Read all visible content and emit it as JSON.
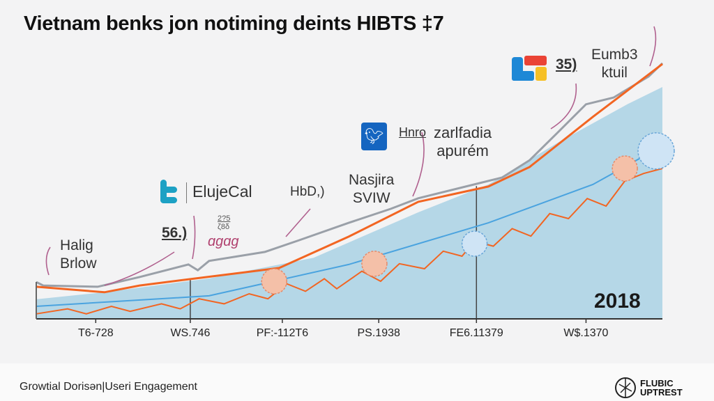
{
  "title": "Vietnam benks jon notiming deints HIBTS ‡7",
  "footer": {
    "text": "Growtial Dorisǝn|Useri Engagement",
    "brand": [
      "FLUBIC",
      "UPTREST"
    ]
  },
  "annotations": {
    "halig": [
      "Halig",
      "Brlow"
    ],
    "num56": "56.)",
    "small1": "2?5",
    "small2": "ζ8δ",
    "scribble": "ɑɡɑɡ",
    "elujecal": "ElujeCal",
    "hbd": "HbD,)",
    "nasjira": [
      "Nasjira",
      "SVIW"
    ],
    "hnro": "Hnro",
    "zarlfadia": [
      "zarlfadia",
      "apurém"
    ],
    "num35": "35)",
    "eumb": [
      "Eumb3",
      "ktuil"
    ],
    "year": "2018"
  },
  "colors": {
    "orange": "#f26522",
    "gray": "#9aa0a8",
    "area": "#a9d1e4",
    "blue": "#4aa3df",
    "twitter": "#1da1c4",
    "twitter_box": "#1565c0"
  },
  "chart_data": {
    "type": "line",
    "title": "Vietnam benks jon notiming deints HIBTS ‡7",
    "xlabel": "",
    "ylabel": "",
    "xlim": [
      0,
      100
    ],
    "ylim": [
      0,
      105
    ],
    "tick_labels": [
      {
        "x": 9.5,
        "label": "T6-728"
      },
      {
        "x": 24.6,
        "label": "WS.746"
      },
      {
        "x": 39.3,
        "label": "PF:-112T6"
      },
      {
        "x": 54.7,
        "label": "PS.1938"
      },
      {
        "x": 70.3,
        "label": "FE6.11379"
      },
      {
        "x": 87.8,
        "label": "W$.1370"
      }
    ],
    "markers": [
      24.6,
      70.3
    ],
    "series": [
      {
        "name": "area",
        "kind": "area",
        "points": [
          [
            0,
            7.8
          ],
          [
            10.9,
            10.6
          ],
          [
            27.6,
            16.1
          ],
          [
            44.3,
            24.4
          ],
          [
            61,
            42.5
          ],
          [
            72.2,
            53.6
          ],
          [
            83.3,
            70.3
          ],
          [
            94.4,
            85.6
          ],
          [
            100,
            92.5
          ]
        ]
      },
      {
        "name": "gray",
        "kind": "line",
        "points": [
          [
            0,
            14.7
          ],
          [
            1.1,
            13.3
          ],
          [
            9.8,
            12.8
          ],
          [
            16.5,
            16.7
          ],
          [
            24.3,
            21.7
          ],
          [
            25.8,
            19.4
          ],
          [
            27.6,
            23.1
          ],
          [
            36.5,
            26.7
          ],
          [
            42,
            31.4
          ],
          [
            49.9,
            38.3
          ],
          [
            56.6,
            43.9
          ],
          [
            61,
            48.1
          ],
          [
            69.9,
            53.6
          ],
          [
            74.4,
            56.4
          ],
          [
            78.8,
            63.3
          ],
          [
            83.3,
            74.4
          ],
          [
            87.8,
            85.6
          ],
          [
            92.2,
            88.3
          ],
          [
            97.8,
            96.7
          ],
          [
            100,
            102
          ]
        ]
      },
      {
        "name": "orange-trend",
        "kind": "line",
        "points": [
          [
            0,
            12.8
          ],
          [
            10.9,
            10.6
          ],
          [
            16.5,
            13.3
          ],
          [
            25.4,
            16.1
          ],
          [
            38.8,
            20.3
          ],
          [
            49.9,
            32.8
          ],
          [
            61,
            46.7
          ],
          [
            72.2,
            52.8
          ],
          [
            78.8,
            60.6
          ],
          [
            88.9,
            80.6
          ],
          [
            100,
            101.7
          ]
        ]
      },
      {
        "name": "blue",
        "kind": "line",
        "points": [
          [
            0,
            5
          ],
          [
            27.6,
            9.2
          ],
          [
            49.9,
            21.7
          ],
          [
            72.2,
            38.3
          ],
          [
            88.9,
            53.6
          ],
          [
            98.9,
            67.5
          ]
        ]
      },
      {
        "name": "orange-jagged",
        "kind": "line",
        "points": [
          [
            0,
            2
          ],
          [
            5,
            4
          ],
          [
            8,
            2
          ],
          [
            12,
            5
          ],
          [
            15,
            3
          ],
          [
            20,
            6
          ],
          [
            23,
            4
          ],
          [
            26,
            8
          ],
          [
            30,
            6
          ],
          [
            34,
            10
          ],
          [
            37,
            8
          ],
          [
            40,
            14
          ],
          [
            43,
            11
          ],
          [
            46,
            16
          ],
          [
            48,
            12
          ],
          [
            52,
            19
          ],
          [
            55,
            15
          ],
          [
            58,
            22
          ],
          [
            62,
            20
          ],
          [
            65,
            27
          ],
          [
            68,
            25
          ],
          [
            70,
            31
          ],
          [
            73,
            29
          ],
          [
            76,
            36
          ],
          [
            79,
            33
          ],
          [
            82,
            42
          ],
          [
            85,
            40
          ],
          [
            88,
            48
          ],
          [
            91,
            45
          ],
          [
            94,
            55
          ],
          [
            97,
            58
          ],
          [
            100,
            60
          ]
        ]
      }
    ],
    "clusters": [
      [
        38,
        15
      ],
      [
        54,
        22
      ],
      [
        70,
        30
      ],
      [
        94,
        60
      ],
      [
        99,
        67
      ]
    ]
  }
}
